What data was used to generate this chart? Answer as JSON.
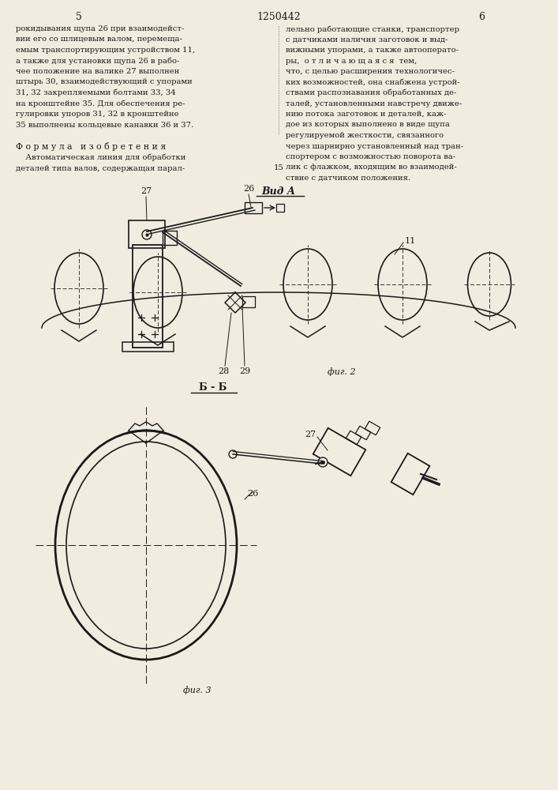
{
  "page_number_left": "5",
  "page_number_right": "6",
  "patent_number": "1250442",
  "background_color": "#f0ece0",
  "text_color": "#1a1a1a",
  "line_color": "#1a1a1a",
  "left_texts": [
    "рокидывания щупа 26 при взаимодейст-",
    "вии его со шлицевым валом, перемеща-",
    "емым транспортирующим устройством 11,",
    "а также для установки щупа 26 в рабо-",
    "чее положение на валике 27 выполнен",
    "штырь 30, взаимодействующий с упорами",
    "31, 32 закрепляемыми болтами 33, 34",
    "на кронштейне 35. Для обеспечения ре-",
    "гулировки упоров 31, 32 в кронштейне",
    "35 выполнены кольцевые канавки 36 и 37."
  ],
  "right_texts": [
    "лельно работающие станки, транспортер",
    "с датчиками наличия заготовок и выд-",
    "вижными упорами, а также автооперато-",
    "ры,  о т л и ч а ю щ а я с я  тем,",
    "что, с целью расширения технологичес-",
    "ких возможностей, она снабжена устрой-",
    "ствами распознавания обработанных де-",
    "талей, установленными навстречу движе-",
    "нию потока заготовок и деталей, каж-",
    "дое из которых выполнено в виде щупа",
    "регулируемой жесткости, связанного",
    "через шарнирно установленный над тран-",
    "спортером с возможностью поворота ва-",
    "лик с флажком, входящим во взаимодей-",
    "ствие с датчиком положения."
  ],
  "vida_label": "Вид А",
  "fig2_label": "фиг. 2",
  "fig3_label": "фиг. 3",
  "section_label": "Б - Б"
}
